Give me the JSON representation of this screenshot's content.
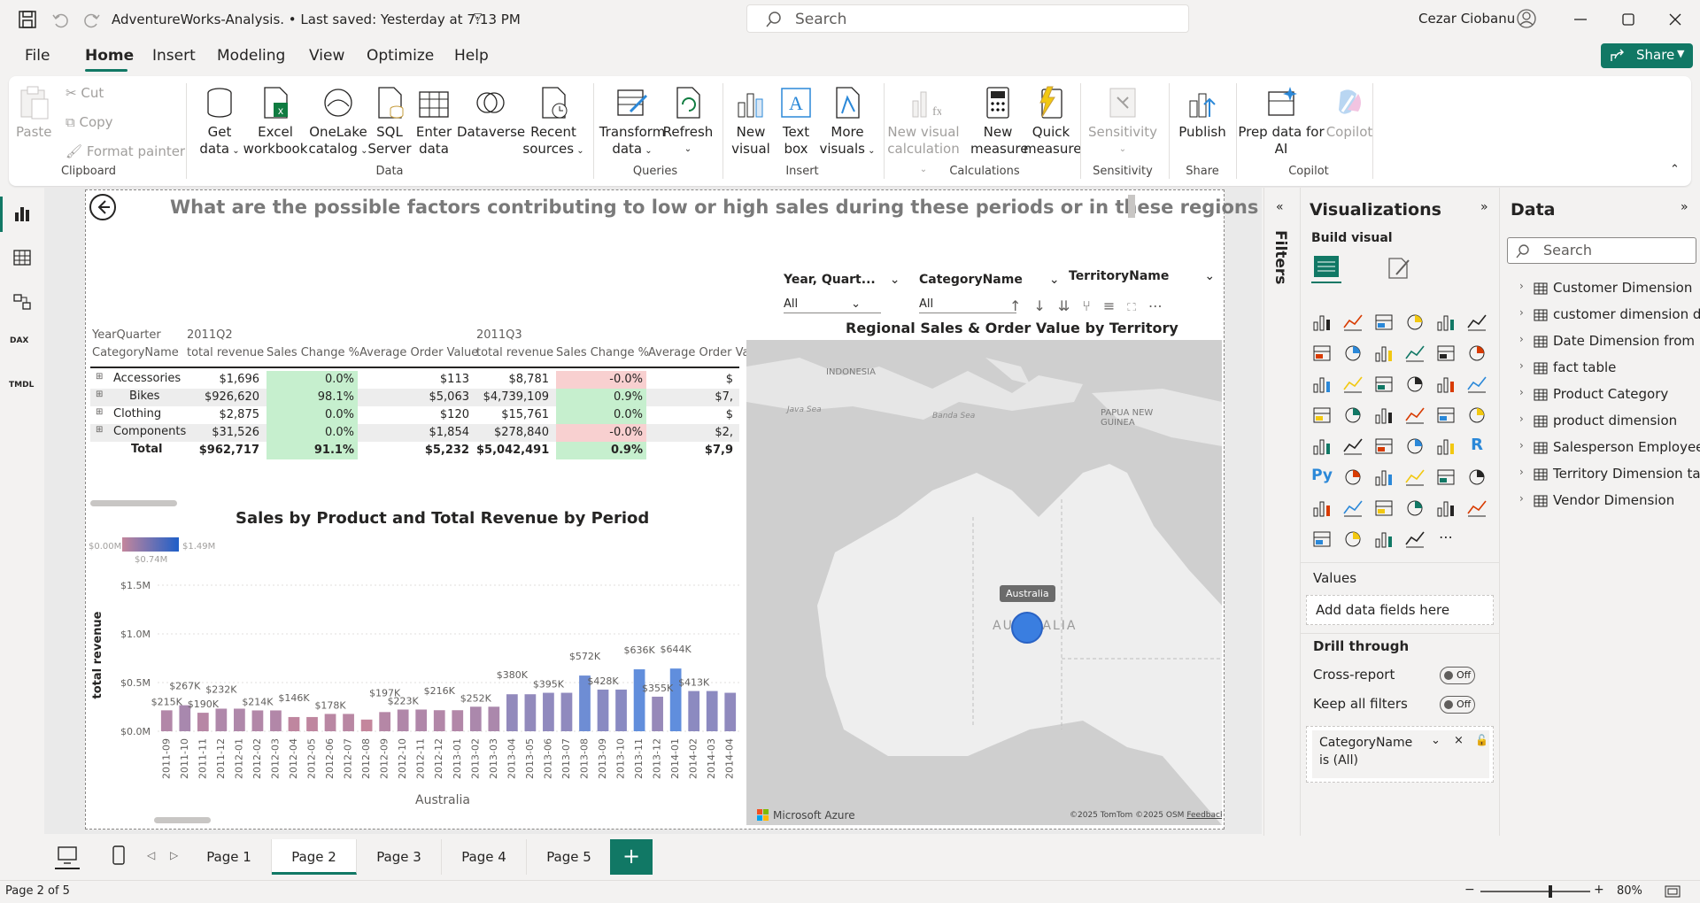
{
  "titlebar": {
    "file_title": "AdventureWorks-Analysis. • Last saved: Yesterday at 7:13 PM",
    "search_placeholder": "Search",
    "user_name": "Cezar Ciobanu"
  },
  "menu": {
    "items": [
      "File",
      "Home",
      "Insert",
      "Modeling",
      "View",
      "Optimize",
      "Help"
    ],
    "active": "Home",
    "share_label": "Share"
  },
  "ribbon": {
    "clipboard": {
      "paste": "Paste",
      "cut": "Cut",
      "copy": "Copy",
      "format_painter": "Format painter",
      "group": "Clipboard"
    },
    "data": {
      "get_data": "Get",
      "get_data2": "data",
      "excel": "Excel",
      "excel2": "workbook",
      "onelake": "OneLake",
      "onelake2": "catalog",
      "sql": "SQL",
      "sql2": "Server",
      "enter": "Enter",
      "enter2": "data",
      "dataverse": "Dataverse",
      "recent": "Recent",
      "recent2": "sources",
      "group": "Data"
    },
    "queries": {
      "transform": "Transform",
      "transform2": "data",
      "refresh": "Refresh",
      "group": "Queries"
    },
    "insert": {
      "new_visual": "New",
      "new_visual2": "visual",
      "text_box": "Text",
      "text_box2": "box",
      "more": "More",
      "more2": "visuals",
      "group": "Insert"
    },
    "calculations": {
      "new_vis_calc": "New visual",
      "new_vis_calc2": "calculation",
      "new_measure": "New",
      "new_measure2": "measure",
      "quick": "Quick",
      "quick2": "measure",
      "group": "Calculations"
    },
    "sensitivity": {
      "label": "Sensitivity",
      "group": "Sensitivity"
    },
    "share": {
      "publish": "Publish",
      "group": "Share"
    },
    "copilot": {
      "prep": "Prep data for",
      "prep2": "AI",
      "copilot": "Copilot",
      "group": "Copilot"
    }
  },
  "report": {
    "question": "What are the possible factors contributing to low or high sales during these periods or in these regions ?",
    "slicers": [
      {
        "title": "Year, Quart...",
        "value": "All"
      },
      {
        "title": "CategoryName",
        "value": "All"
      },
      {
        "title": "TerritoryName",
        "value": ""
      }
    ]
  },
  "matrix": {
    "row_header_1": "YearQuarter",
    "row_header_2": "CategoryName",
    "periods": [
      "2011Q2",
      "2011Q3"
    ],
    "columns": [
      "total revenue",
      "Sales Change %",
      "Average Order Value",
      "total revenue",
      "Sales Change %",
      "Average Order Va"
    ],
    "rows": [
      {
        "name": "Accessories",
        "v": [
          "$1,696",
          "0.0%",
          "$113",
          "$8,781",
          "-0.0%",
          "$"
        ]
      },
      {
        "name": "Bikes",
        "v": [
          "$926,620",
          "98.1%",
          "$5,063",
          "$4,739,109",
          "0.9%",
          "$7,"
        ]
      },
      {
        "name": "Clothing",
        "v": [
          "$2,875",
          "0.0%",
          "$120",
          "$15,761",
          "0.0%",
          "$"
        ]
      },
      {
        "name": "Components",
        "v": [
          "$31,526",
          "0.0%",
          "$1,854",
          "$278,840",
          "-0.0%",
          "$2,"
        ]
      }
    ],
    "total": {
      "name": "Total",
      "v": [
        "$962,717",
        "91.1%",
        "$5,232",
        "$5,042,491",
        "0.9%",
        "$7,9"
      ]
    }
  },
  "chart_data": {
    "type": "bar",
    "title": "Sales by Product and Total Revenue by Period",
    "xlabel": "Australia",
    "ylabel": "total revenue",
    "legend": {
      "min": "$0.00M",
      "mid": "$0.74M",
      "max": "$1.49M"
    },
    "yticks": [
      "$0.0M",
      "$0.5M",
      "$1.0M",
      "$1.5M"
    ],
    "ylim": [
      0,
      1.6
    ],
    "categories": [
      "2011-09",
      "2011-10",
      "2011-11",
      "2011-12",
      "2012-01",
      "2012-02",
      "2012-03",
      "2012-04",
      "2012-05",
      "2012-06",
      "2012-07",
      "2012-08",
      "2012-09",
      "2012-10",
      "2012-11",
      "2012-12",
      "2013-01",
      "2013-02",
      "2013-03",
      "2013-04",
      "2013-05",
      "2013-06",
      "2013-07",
      "2013-08",
      "2013-09",
      "2013-10",
      "2013-11",
      "2013-12",
      "2014-01",
      "2014-02",
      "2014-03",
      "2014-04"
    ],
    "values": [
      0.215,
      0.267,
      0.19,
      0.232,
      0.232,
      0.214,
      0.214,
      0.146,
      0.146,
      0.178,
      0.178,
      0.12,
      0.197,
      0.223,
      0.223,
      0.216,
      0.216,
      0.252,
      0.252,
      0.38,
      0.38,
      0.395,
      0.395,
      0.572,
      0.428,
      0.428,
      0.636,
      0.355,
      0.644,
      0.413,
      0.413,
      0.395
    ],
    "labels": [
      "$215K",
      "$267K",
      "$190K",
      "$232K",
      "$214K",
      "$146K",
      "$178K",
      "$197K",
      "$223K",
      "$216K",
      "$252K",
      "$380K",
      "$395K",
      "$572K",
      "$428K",
      "$636K",
      "$355K",
      "$644K",
      "$413K"
    ]
  },
  "map": {
    "title": "Regional Sales & Order Value by Territory",
    "tooltip": "Australia",
    "labels": [
      "INDONESIA",
      "PAPUA NEW GUINEA",
      "Java Sea",
      "Banda Sea",
      "AUSTRALIA"
    ],
    "brand": "Microsoft Azure",
    "credits": "©2025 TomTom ©2025 OSM",
    "feedback": "Feedback"
  },
  "filters_label": "Filters",
  "visualizations": {
    "title": "Visualizations",
    "build_visual": "Build visual",
    "values_label": "Values",
    "add_fields": "Add data fields here",
    "drill_through": "Drill through",
    "cross_report": "Cross-report",
    "keep_filters": "Keep all filters",
    "off": "Off",
    "filter_card_1": "CategoryName",
    "filter_card_2": "is (All)"
  },
  "data_pane": {
    "title": "Data",
    "search_placeholder": "Search",
    "tables": [
      "Customer Dimension",
      "customer dimension d...",
      "Date Dimension from ...",
      "fact table",
      "Product Category",
      "product dimension",
      "Salesperson Employee...",
      "Territory Dimension ta...",
      "Vendor Dimension"
    ]
  },
  "pages": [
    "Page 1",
    "Page 2",
    "Page 3",
    "Page 4",
    "Page 5"
  ],
  "active_page": "Page 2",
  "status": {
    "page_info": "Page 2 of 5",
    "zoom": "80%"
  },
  "colors": {
    "accent": "#117865",
    "bar_low": "#c4869c",
    "bar_high": "#5b8ee0",
    "green_cell": "#c6efce",
    "red_cell": "#f8d0d0"
  }
}
